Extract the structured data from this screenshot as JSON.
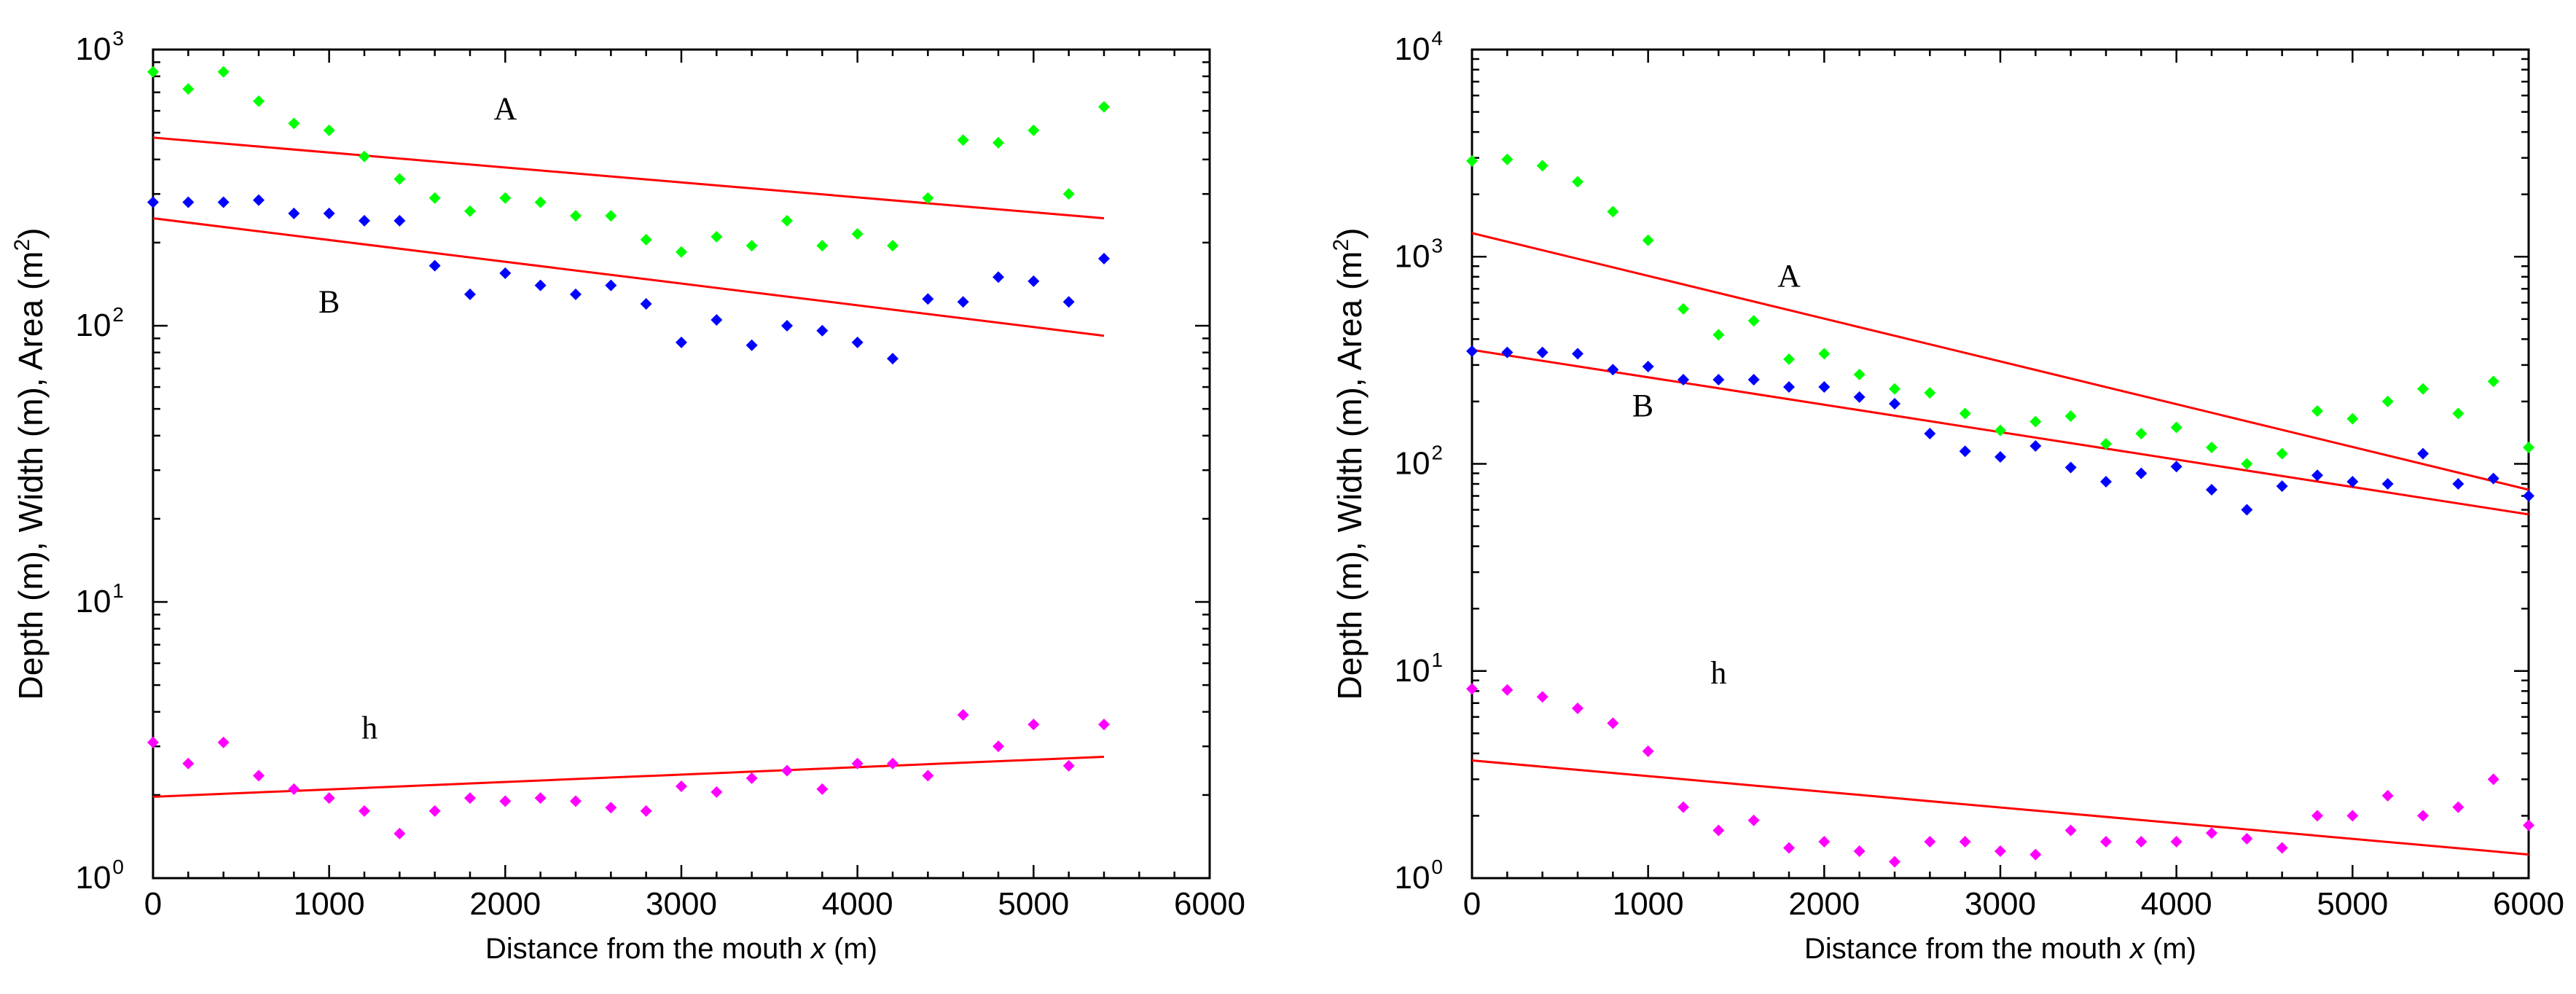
{
  "chart_data": [
    {
      "type": "scatter",
      "xlabel_prefix": "Distance from the mouth  ",
      "xlabel_var": "x",
      "xlabel_suffix": " (m)",
      "ylabel_text": "Depth (m), Width (m), Area (m",
      "ylabel_sup": "2",
      "ylabel_close": ")",
      "xlim": [
        0,
        6000
      ],
      "ylim": [
        1,
        1000
      ],
      "yscale": "log",
      "xticks": [
        0,
        1000,
        2000,
        3000,
        4000,
        5000,
        6000
      ],
      "ydecades": [
        0,
        1,
        2,
        3
      ],
      "x": [
        0,
        200,
        400,
        600,
        800,
        1000,
        1200,
        1400,
        1600,
        1800,
        2000,
        2200,
        2400,
        2600,
        2800,
        3000,
        3200,
        3400,
        3600,
        3800,
        4000,
        4200,
        4400,
        4600,
        4800,
        5000,
        5200,
        5400
      ],
      "series": [
        {
          "name": "A",
          "color": "#00ff00",
          "x": [
            0,
            200,
            400,
            600,
            800,
            1000,
            1200,
            1400,
            1600,
            1800,
            2000,
            2200,
            2400,
            2600,
            2800,
            3000,
            3200,
            3400,
            3600,
            3800,
            4000,
            4200,
            4400,
            4600,
            4800,
            5000,
            5200,
            5400
          ],
          "values": [
            830,
            720,
            830,
            650,
            540,
            510,
            410,
            340,
            290,
            260,
            290,
            280,
            250,
            250,
            205,
            185,
            210,
            195,
            240,
            195,
            215,
            195,
            290,
            470,
            460,
            510,
            300,
            620
          ]
        },
        {
          "name": "B",
          "color": "#0000ff",
          "x": [
            0,
            200,
            400,
            600,
            800,
            1000,
            1200,
            1400,
            1600,
            1800,
            2000,
            2200,
            2400,
            2600,
            2800,
            3000,
            3200,
            3400,
            3600,
            3800,
            4000,
            4200,
            4400,
            4600,
            4800,
            5000,
            5200,
            5400
          ],
          "values": [
            280,
            280,
            280,
            285,
            255,
            255,
            240,
            240,
            165,
            130,
            155,
            140,
            130,
            140,
            120,
            87,
            105,
            85,
            100,
            96,
            87,
            76,
            125,
            122,
            150,
            145,
            122,
            175
          ]
        },
        {
          "name": "h",
          "color": "#ff00ff",
          "x": [
            0,
            200,
            400,
            600,
            800,
            1000,
            1200,
            1400,
            1600,
            1800,
            2000,
            2200,
            2400,
            2600,
            2800,
            3000,
            3200,
            3400,
            3600,
            3800,
            4000,
            4200,
            4400,
            4600,
            4800,
            5000,
            5200,
            5400
          ],
          "values": [
            3.1,
            2.6,
            3.1,
            2.35,
            2.1,
            1.95,
            1.75,
            1.45,
            1.75,
            1.95,
            1.9,
            1.95,
            1.9,
            1.8,
            1.75,
            2.15,
            2.05,
            2.3,
            2.45,
            2.1,
            2.6,
            2.6,
            2.35,
            3.9,
            3.0,
            3.6,
            2.55,
            3.6
          ]
        }
      ],
      "fits": [
        {
          "name": "A fit",
          "x": [
            0,
            5400
          ],
          "values": [
            480,
            245
          ]
        },
        {
          "name": "B fit",
          "x": [
            0,
            5400
          ],
          "values": [
            245,
            92
          ]
        },
        {
          "name": "h fit",
          "x": [
            0,
            5400
          ],
          "values": [
            1.97,
            2.75
          ]
        }
      ],
      "annotations": [
        {
          "text": "A",
          "x": 2000,
          "y": 560
        },
        {
          "text": "B",
          "x": 1000,
          "y": 112
        },
        {
          "text": "h",
          "x": 1230,
          "y": 3.2
        }
      ]
    },
    {
      "type": "scatter",
      "xlabel_prefix": "Distance from the mouth  ",
      "xlabel_var": "x",
      "xlabel_suffix": " (m)",
      "ylabel_text": "Depth (m), Width (m), Area (m",
      "ylabel_sup": "2",
      "ylabel_close": ")",
      "xlim": [
        0,
        6000
      ],
      "ylim": [
        1,
        10000
      ],
      "yscale": "log",
      "xticks": [
        0,
        1000,
        2000,
        3000,
        4000,
        5000,
        6000
      ],
      "ydecades": [
        0,
        1,
        2,
        3,
        4
      ],
      "series": [
        {
          "name": "A",
          "color": "#00ff00",
          "x": [
            0,
            200,
            400,
            600,
            800,
            1000,
            1200,
            1400,
            1600,
            1800,
            2000,
            2200,
            2400,
            2600,
            2800,
            3000,
            3200,
            3400,
            3600,
            3800,
            4000,
            4200,
            4400,
            4600,
            4800,
            5000,
            5200,
            5400,
            5600,
            5800,
            6000
          ],
          "values": [
            2900,
            2950,
            2750,
            2300,
            1650,
            1200,
            560,
            420,
            490,
            320,
            340,
            270,
            230,
            220,
            175,
            145,
            160,
            170,
            125,
            140,
            150,
            120,
            100,
            112,
            180,
            165,
            200,
            230,
            175,
            250,
            120
          ]
        },
        {
          "name": "B",
          "color": "#0000ff",
          "x": [
            0,
            200,
            400,
            600,
            800,
            1000,
            1200,
            1400,
            1600,
            1800,
            2000,
            2200,
            2400,
            2600,
            2800,
            3000,
            3200,
            3400,
            3600,
            3800,
            4000,
            4200,
            4400,
            4600,
            4800,
            5000,
            5200,
            5400,
            5600,
            5800,
            6000
          ],
          "values": [
            350,
            345,
            345,
            340,
            285,
            295,
            255,
            255,
            255,
            235,
            235,
            210,
            195,
            140,
            115,
            108,
            122,
            96,
            82,
            90,
            97,
            75,
            60,
            78,
            88,
            82,
            80,
            112,
            80,
            85,
            70
          ]
        },
        {
          "name": "h",
          "color": "#ff00ff",
          "x": [
            0,
            200,
            400,
            600,
            800,
            1000,
            1200,
            1400,
            1600,
            1800,
            2000,
            2200,
            2400,
            2600,
            2800,
            3000,
            3200,
            3400,
            3600,
            3800,
            4000,
            4200,
            4400,
            4600,
            4800,
            5000,
            5200,
            5400,
            5600,
            5800,
            6000
          ],
          "values": [
            8.2,
            8.1,
            7.5,
            6.6,
            5.6,
            4.1,
            2.2,
            1.7,
            1.9,
            1.4,
            1.5,
            1.35,
            1.2,
            1.5,
            1.5,
            1.35,
            1.3,
            1.7,
            1.5,
            1.5,
            1.5,
            1.65,
            1.55,
            1.4,
            2.0,
            2.0,
            2.5,
            2.0,
            2.2,
            3.0,
            1.8
          ]
        }
      ],
      "fits": [
        {
          "name": "A fit",
          "x": [
            0,
            6000
          ],
          "values": [
            1300,
            75
          ]
        },
        {
          "name": "B fit",
          "x": [
            0,
            6000
          ],
          "values": [
            355,
            57
          ]
        },
        {
          "name": "h fit",
          "x": [
            0,
            6000
          ],
          "values": [
            3.7,
            1.3
          ]
        }
      ],
      "annotations": [
        {
          "text": "A",
          "x": 1800,
          "y": 720
        },
        {
          "text": "B",
          "x": 970,
          "y": 170
        },
        {
          "text": "h",
          "x": 1400,
          "y": 8.7
        }
      ]
    }
  ]
}
